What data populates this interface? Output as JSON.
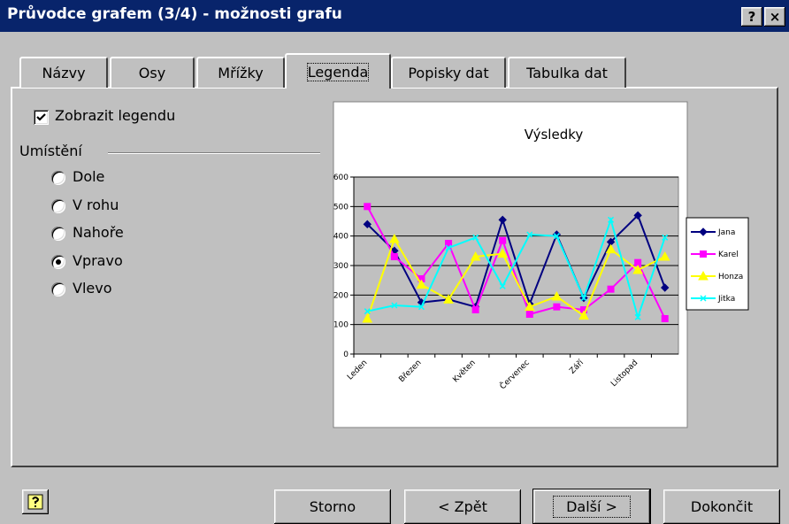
{
  "window": {
    "title": "Průvodce grafem (3/4) - možnosti grafu",
    "title_buttons": [
      "?",
      "×"
    ]
  },
  "tabs": [
    {
      "label": "Názvy",
      "selected": false
    },
    {
      "label": "Osy",
      "selected": false
    },
    {
      "label": "Mřížky",
      "selected": false
    },
    {
      "label": "Legenda",
      "selected": true
    },
    {
      "label": "Popisky dat",
      "selected": false
    },
    {
      "label": "Tabulka dat",
      "selected": false
    }
  ],
  "legend_options": {
    "show_legend": {
      "label": "Zobrazit legendu",
      "checked": true
    },
    "placement": {
      "label": "Umístění",
      "options": [
        {
          "label": "Dole",
          "selected": false
        },
        {
          "label": "V rohu",
          "selected": false
        },
        {
          "label": "Nahoře",
          "selected": false
        },
        {
          "label": "Vpravo",
          "selected": true
        },
        {
          "label": "Vlevo",
          "selected": false
        }
      ]
    }
  },
  "chart_data": {
    "type": "line",
    "title": "Výsledky",
    "categories": [
      "Leden",
      null,
      "Březen",
      null,
      "Květen",
      null,
      "Červenec",
      null,
      "Září",
      null,
      "Listopad",
      null
    ],
    "series": [
      {
        "name": "Jana",
        "color": "#000080",
        "marker": "diamond",
        "values": [
          440,
          350,
          175,
          185,
          160,
          455,
          170,
          405,
          190,
          380,
          470,
          225
        ]
      },
      {
        "name": "Karel",
        "color": "#ff00ff",
        "marker": "square",
        "values": [
          500,
          330,
          255,
          375,
          150,
          385,
          135,
          160,
          150,
          220,
          310,
          120
        ]
      },
      {
        "name": "Honza",
        "color": "#ffff00",
        "marker": "triangle",
        "values": [
          120,
          390,
          235,
          185,
          330,
          340,
          160,
          195,
          130,
          355,
          285,
          330
        ]
      },
      {
        "name": "Jitka",
        "color": "#00ffff",
        "marker": "cross",
        "values": [
          145,
          165,
          160,
          360,
          395,
          230,
          405,
          400,
          190,
          455,
          125,
          395
        ]
      }
    ],
    "ylim": [
      0,
      600
    ],
    "yticks": [
      0,
      100,
      200,
      300,
      400,
      500,
      600
    ],
    "grid": true,
    "legend": "right"
  },
  "buttons": [
    {
      "label": "Storno",
      "default": false
    },
    {
      "label": "< Zpět",
      "default": false
    },
    {
      "label": "Další >",
      "default": true
    },
    {
      "label": "Dokončit",
      "default": false
    }
  ]
}
